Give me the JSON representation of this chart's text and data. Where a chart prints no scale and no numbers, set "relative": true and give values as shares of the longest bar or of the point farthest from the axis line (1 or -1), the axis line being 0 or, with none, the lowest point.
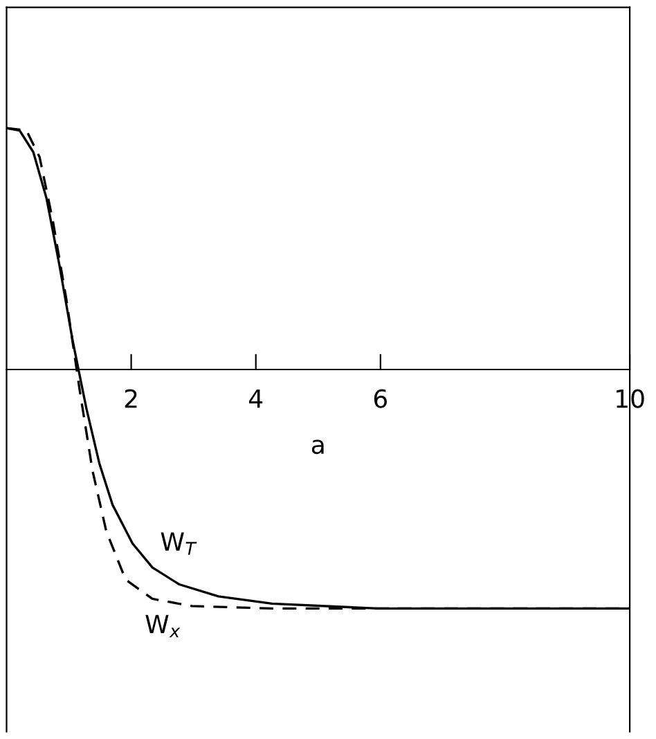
{
  "chart_data": {
    "type": "line",
    "relative": true,
    "xlabel": "a",
    "xlim": [
      0,
      10
    ],
    "xticks": [
      2,
      4,
      6,
      10
    ],
    "tick_labels": "x",
    "grid": false,
    "legend": false,
    "marker": "none",
    "series": [
      {
        "color": "#000000",
        "line_style": "solid",
        "x": [
          0,
          0.21,
          0.43,
          0.64,
          0.85,
          1.06,
          1.28,
          1.49,
          1.7,
          2.02,
          2.34,
          2.77,
          3.4,
          4.26,
          5.96,
          10
        ],
        "values": [
          1.0,
          0.99,
          0.9,
          0.71,
          0.43,
          0.12,
          -0.16,
          -0.39,
          -0.56,
          -0.72,
          -0.82,
          -0.89,
          -0.94,
          -0.97,
          -0.99,
          -0.99
        ]
      },
      {
        "color": "#000000",
        "line_style": "dashed",
        "x": [
          0,
          0.32,
          0.53,
          0.74,
          0.96,
          1.17,
          1.38,
          1.6,
          1.91,
          2.34,
          2.98,
          4.26,
          10
        ],
        "values": [
          1.0,
          0.99,
          0.88,
          0.62,
          0.29,
          -0.08,
          -0.42,
          -0.67,
          -0.87,
          -0.95,
          -0.98,
          -0.99,
          -0.99
        ]
      }
    ],
    "annotations": [
      {
        "text": "W$_{T}$",
        "x": 2.34,
        "y": -0.82
      },
      {
        "text": "W$_{x}$",
        "x": 2.34,
        "y": -0.95
      }
    ]
  }
}
